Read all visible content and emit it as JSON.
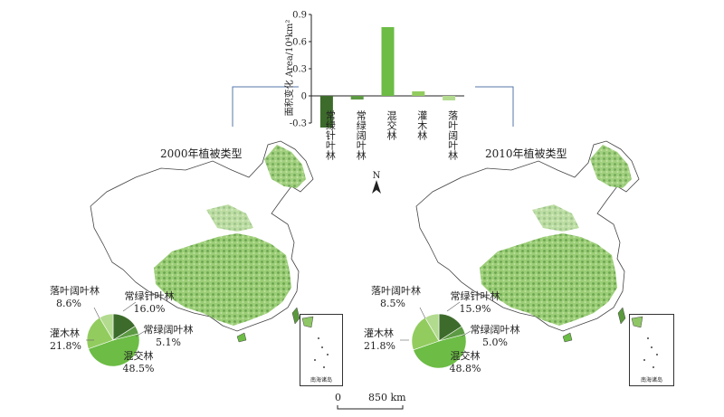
{
  "chart_data": [
    {
      "type": "bar",
      "ylabel": "面积变化 Area/10⁴km²",
      "ylim": [
        -0.3,
        0.9
      ],
      "yticks": [
        "0.9",
        "0.6",
        "0.3",
        "0",
        "-0.3"
      ],
      "categories": [
        "常绿针叶林",
        "常绿阔叶林",
        "混交林",
        "灌木林",
        "落叶阔叶林"
      ],
      "values": [
        -0.35,
        -0.04,
        0.76,
        0.05,
        -0.05
      ],
      "colors": [
        "#3d6b2c",
        "#5c9a43",
        "#6cbc45",
        "#92cc5f",
        "#b3db8f"
      ]
    },
    {
      "type": "pie",
      "title": "2000年植被类型",
      "slices": [
        {
          "name": "常绿针叶林",
          "pct": "16.0%",
          "value": 16.0,
          "color": "#3d6b2c"
        },
        {
          "name": "常绿阔叶林",
          "pct": "5.1%",
          "value": 5.1,
          "color": "#5c9a43"
        },
        {
          "name": "混交林",
          "pct": "48.5%",
          "value": 48.5,
          "color": "#6cbc45"
        },
        {
          "name": "灌木林",
          "pct": "21.8%",
          "value": 21.8,
          "color": "#92cc5f"
        },
        {
          "name": "落叶阔叶林",
          "pct": "8.6%",
          "value": 8.6,
          "color": "#b3db8f"
        }
      ]
    },
    {
      "type": "pie",
      "title": "2010年植被类型",
      "slices": [
        {
          "name": "常绿针叶林",
          "pct": "15.9%",
          "value": 15.9,
          "color": "#3d6b2c"
        },
        {
          "name": "常绿阔叶林",
          "pct": "5.0%",
          "value": 5.0,
          "color": "#5c9a43"
        },
        {
          "name": "混交林",
          "pct": "48.8%",
          "value": 48.8,
          "color": "#6cbc45"
        },
        {
          "name": "灌木林",
          "pct": "21.8%",
          "value": 21.8,
          "color": "#92cc5f"
        },
        {
          "name": "落叶阔叶林",
          "pct": "8.5%",
          "value": 8.5,
          "color": "#b3db8f"
        }
      ]
    }
  ],
  "maps": {
    "left_title": "2000年植被类型",
    "right_title": "2010年植被类型",
    "north_label": "N",
    "inset_label": "南海诸岛",
    "scale_zero": "0",
    "scale_text": "850 km"
  },
  "colors": {
    "vegetation_dark": "#3d6b2c",
    "vegetation_mid": "#6cbc45",
    "vegetation_light": "#b3db8f",
    "connector": "#5577aa"
  }
}
